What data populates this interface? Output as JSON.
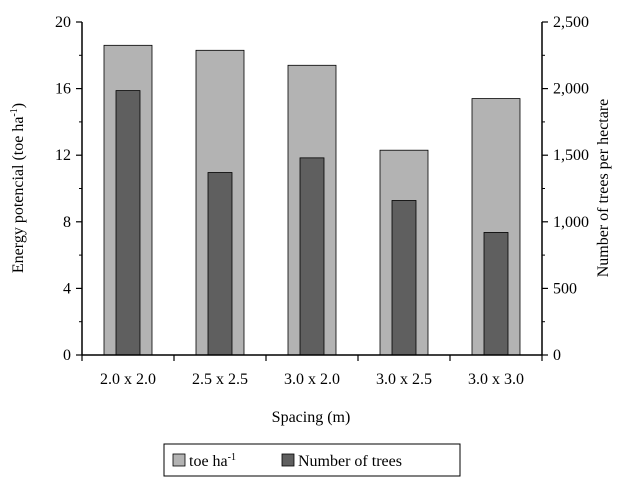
{
  "chart_data": {
    "type": "bar",
    "title": "",
    "xlabel": "Spacing (m)",
    "ylabel": "Energy potencial  (toe ha",
    "ylabel_sup": "-1",
    "ylabel_close": ")",
    "y2label": "Number of trees   per hectare",
    "categories": [
      "2.0 x 2.0",
      "2.5 x 2.5",
      "3.0 x 2.0",
      "3.0 x 2.5",
      "3.0 x 3.0"
    ],
    "ylim": [
      0,
      20
    ],
    "y2lim": [
      0,
      2500
    ],
    "yticks": [
      "0",
      "4",
      "8",
      "12",
      "16",
      "20"
    ],
    "y2ticks": [
      "0",
      "500",
      "1,000",
      "1,500",
      "2,000",
      "2,500"
    ],
    "series": [
      {
        "name": "toe ha",
        "name_sup": "-1",
        "axis": "left",
        "color": "#b3b3b3",
        "values": [
          18.6,
          18.3,
          17.4,
          12.3,
          15.4
        ]
      },
      {
        "name": "Number of trees",
        "axis": "right",
        "color": "#5f5f5f",
        "values": [
          1985,
          1370,
          1480,
          1160,
          920
        ]
      }
    ],
    "legend_position": "bottom-center",
    "grid": false
  }
}
